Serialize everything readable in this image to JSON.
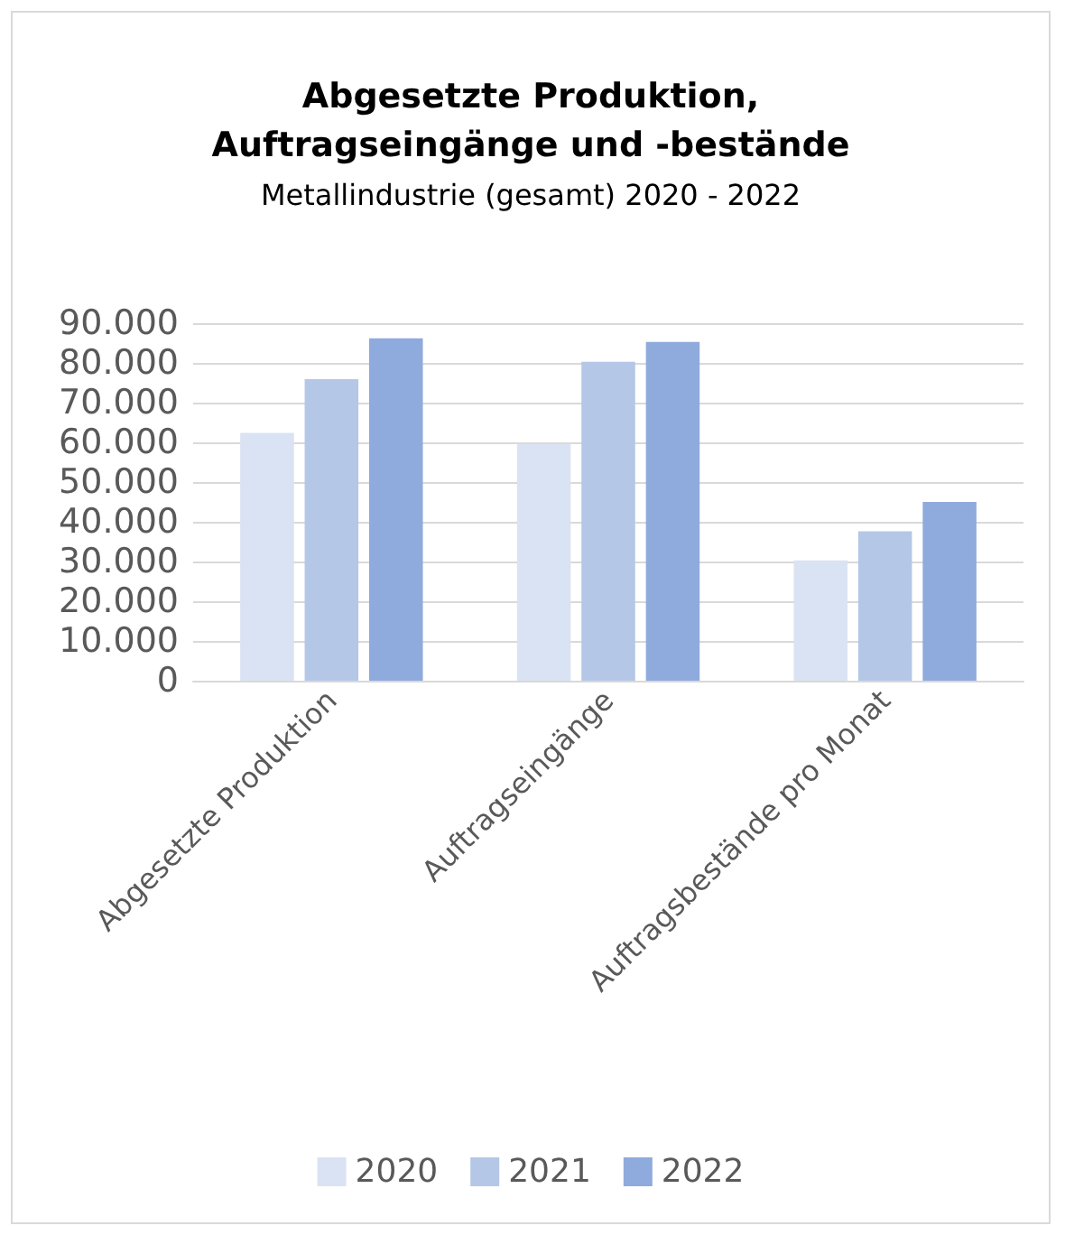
{
  "chart_data": {
    "type": "bar",
    "title": "Abgesetzte Produktion,\nAuftragseingänge und -bestände",
    "subtitle": "Metallindustrie (gesamt) 2020 - 2022",
    "categories": [
      "Abgesetzte Produktion",
      "Auftragseingänge",
      "Auftragsbestände pro Monat"
    ],
    "series": [
      {
        "name": "2020",
        "color": "#dae3f3",
        "values": [
          62400,
          59600,
          30300
        ]
      },
      {
        "name": "2021",
        "color": "#b4c7e7",
        "values": [
          75900,
          80300,
          37600
        ]
      },
      {
        "name": "2022",
        "color": "#8faadc",
        "values": [
          86200,
          85300,
          45000
        ]
      }
    ],
    "ylim": [
      0,
      90000
    ],
    "yticks": [
      {
        "value": 0,
        "label": "0"
      },
      {
        "value": 10000,
        "label": "10.000"
      },
      {
        "value": 20000,
        "label": "20.000"
      },
      {
        "value": 30000,
        "label": "30.000"
      },
      {
        "value": 40000,
        "label": "40.000"
      },
      {
        "value": 50000,
        "label": "50.000"
      },
      {
        "value": 60000,
        "label": "60.000"
      },
      {
        "value": 70000,
        "label": "70.000"
      },
      {
        "value": 80000,
        "label": "80.000"
      },
      {
        "value": 90000,
        "label": "90.000"
      }
    ],
    "grid": "y",
    "legend": "bottom"
  }
}
